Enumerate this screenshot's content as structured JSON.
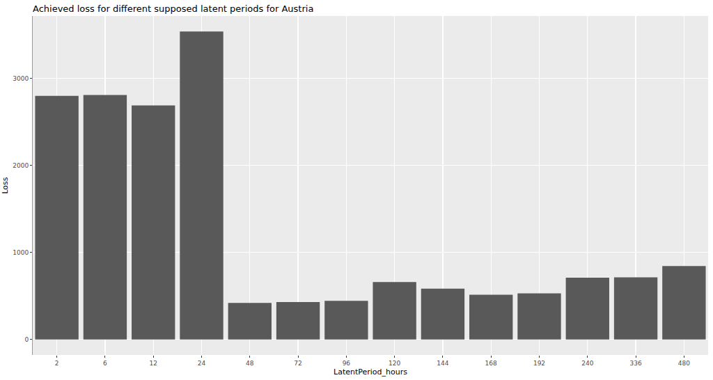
{
  "chart_data": {
    "type": "bar",
    "title": "Achieved loss for different supposed latent periods for Austria",
    "x_label": "LatentPeriod_hours",
    "y_label": "Loss",
    "categories": [
      "2",
      "6",
      "12",
      "24",
      "48",
      "72",
      "96",
      "120",
      "144",
      "168",
      "192",
      "240",
      "336",
      "480"
    ],
    "values": [
      2800,
      2810,
      2690,
      3540,
      420,
      430,
      445,
      660,
      585,
      515,
      530,
      710,
      715,
      845
    ],
    "color": "#595959",
    "ylim": [
      -177,
      3717
    ],
    "yticks": [
      0,
      1000,
      2000,
      3000
    ],
    "grid": true
  }
}
